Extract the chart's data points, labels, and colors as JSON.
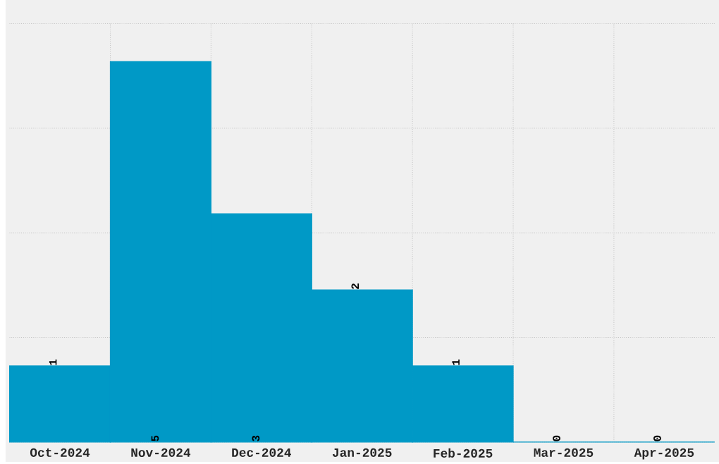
{
  "chart_data": {
    "type": "bar",
    "categories": [
      "Oct-2024",
      "Nov-2024",
      "Dec-2024",
      "Jan-2025",
      "Feb-2025",
      "Mar-2025",
      "Apr-2025"
    ],
    "values": [
      1,
      5,
      3,
      2,
      1,
      0,
      0
    ],
    "color": "#0099c6",
    "ylim": [
      0,
      5.5
    ],
    "yticks": [
      {
        "value": 0,
        "label": null
      },
      {
        "value": 1.375,
        "label": null
      },
      {
        "value": 2.75,
        "label": null
      },
      {
        "value": 4.125,
        "label": null
      },
      {
        "value": 5.5,
        "label": null
      }
    ],
    "tick_labels": "x",
    "grid": true,
    "data_labels": true
  }
}
